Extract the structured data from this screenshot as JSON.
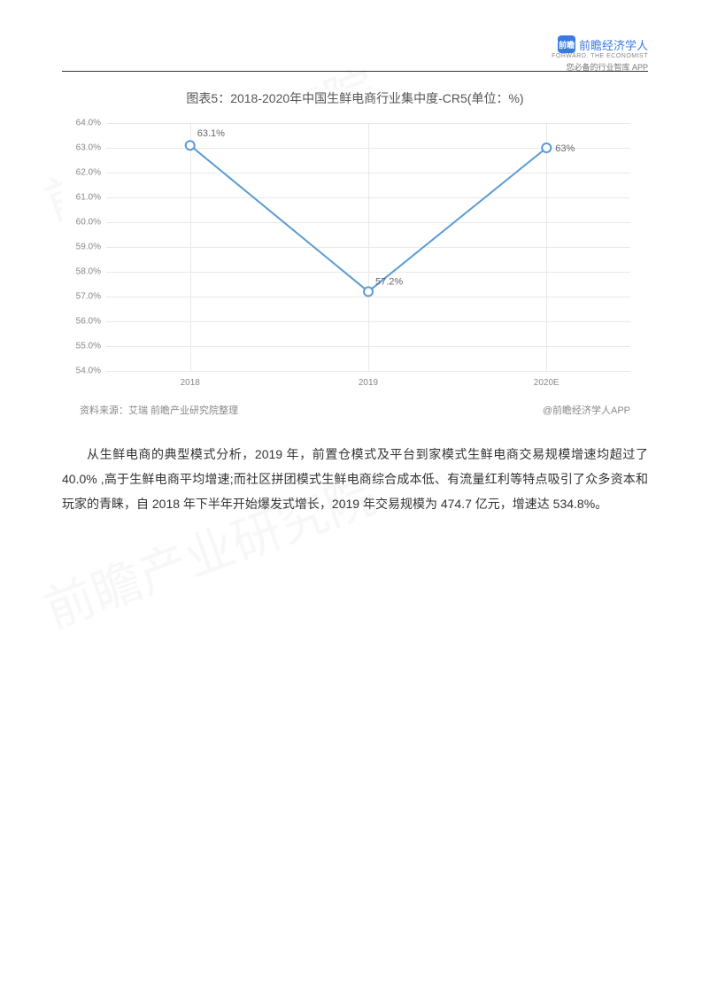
{
  "brand": {
    "logo_text": "前瞻",
    "name": "前瞻经济学人",
    "subtitle": "FORWARD. THE ECONOMIST",
    "tagline": "您必备的行业智库 APP"
  },
  "chart": {
    "type": "line",
    "title": "图表5：2018-2020年中国生鲜电商行业集中度-CR5(单位：%)",
    "title_fontsize": 14,
    "title_color": "#555555",
    "categories": [
      "2018",
      "2019",
      "2020E"
    ],
    "values": [
      63.1,
      57.2,
      63.0
    ],
    "point_labels": [
      "63.1%",
      "57.2%",
      "63%"
    ],
    "line_color": "#5a9bd5",
    "marker_color": "#5a9bd5",
    "marker_fill": "#ffffff",
    "marker_size": 5,
    "line_width": 2,
    "ylim": [
      54.0,
      64.0
    ],
    "ytick_step": 1.0,
    "y_ticks": [
      "54.0%",
      "55.0%",
      "56.0%",
      "57.0%",
      "58.0%",
      "59.0%",
      "60.0%",
      "61.0%",
      "62.0%",
      "63.0%",
      "64.0%"
    ],
    "grid_color": "#e8e8e8",
    "background_color": "#ffffff",
    "label_fontsize": 10,
    "label_color": "#888888",
    "data_label_color": "#666666",
    "source_label": "资料来源：艾瑞 前瞻产业研究院整理",
    "attribution": "@前瞻经济学人APP"
  },
  "body": {
    "paragraph": "从生鲜电商的典型模式分析，2019 年，前置仓模式及平台到家模式生鲜电商交易规模增速均超过了 40.0% ,高于生鲜电商平均增速;而社区拼团模式生鲜电商综合成本低、有流量红利等特点吸引了众多资本和玩家的青睐，自 2018 年下半年开始爆发式增长，2019 年交易规模为 474.7 亿元，增速达 534.8%。"
  },
  "watermark": {
    "text": "前瞻产业研究院"
  }
}
